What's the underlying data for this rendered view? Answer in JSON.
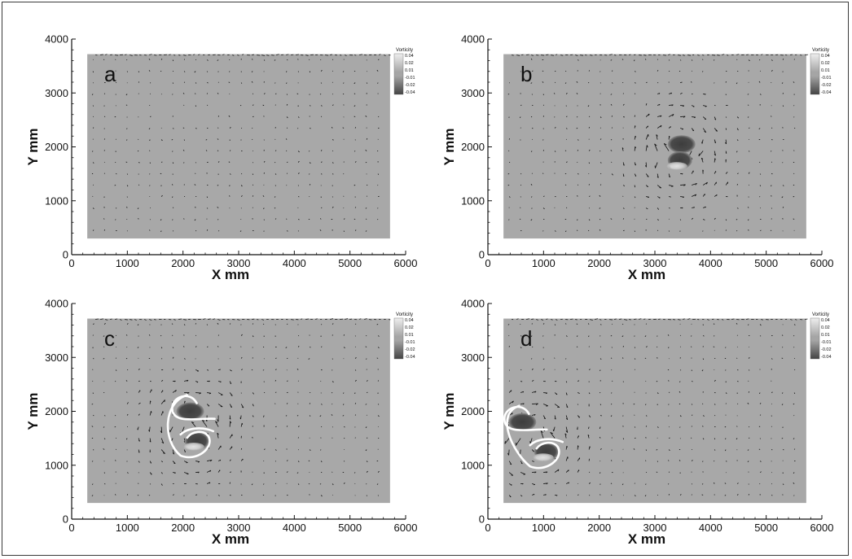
{
  "chart_data": [
    {
      "type": "vector-field",
      "panel_label": "a",
      "xlabel": "X mm",
      "ylabel": "Y mm",
      "xlim": [
        0,
        6000
      ],
      "ylim": [
        0,
        4000
      ],
      "xticks": [
        0,
        1000,
        2000,
        3000,
        4000,
        5000,
        6000
      ],
      "yticks": [
        0,
        1000,
        2000,
        3000,
        4000
      ],
      "field_extent": {
        "x": [
          280,
          5720
        ],
        "y": [
          300,
          3720
        ]
      },
      "colorbar": {
        "title": "Vorticity",
        "ticks": [
          0.04,
          0.02,
          0.01,
          -0.01,
          -0.02,
          -0.04
        ]
      },
      "vortex_pair": null
    },
    {
      "type": "vector-field",
      "panel_label": "b",
      "xlabel": "X mm",
      "ylabel": "Y mm",
      "xlim": [
        0,
        6000
      ],
      "ylim": [
        0,
        4000
      ],
      "xticks": [
        0,
        1000,
        2000,
        3000,
        4000,
        5000,
        6000
      ],
      "yticks": [
        0,
        1000,
        2000,
        3000,
        4000
      ],
      "field_extent": {
        "x": [
          280,
          5720
        ],
        "y": [
          300,
          3720
        ]
      },
      "colorbar": {
        "title": "Vorticity",
        "ticks": [
          0.04,
          0.02,
          0.01,
          -0.01,
          -0.02,
          -0.04
        ]
      },
      "vortex_pair": {
        "upper": {
          "x": 3480,
          "y": 2050
        },
        "lower": {
          "x": 3450,
          "y": 1750
        }
      },
      "streamlines": false
    },
    {
      "type": "vector-field",
      "panel_label": "c",
      "xlabel": "X mm",
      "ylabel": "Y mm",
      "xlim": [
        0,
        6000
      ],
      "ylim": [
        0,
        4000
      ],
      "xticks": [
        0,
        1000,
        2000,
        3000,
        4000,
        5000,
        6000
      ],
      "yticks": [
        0,
        1000,
        2000,
        3000,
        4000
      ],
      "field_extent": {
        "x": [
          280,
          5720
        ],
        "y": [
          300,
          3720
        ]
      },
      "colorbar": {
        "title": "Vorticity",
        "ticks": [
          0.04,
          0.02,
          0.01,
          -0.01,
          -0.02,
          -0.04
        ]
      },
      "vortex_pair": {
        "upper": {
          "x": 2130,
          "y": 2000
        },
        "lower": {
          "x": 2250,
          "y": 1450
        }
      },
      "streamlines": true
    },
    {
      "type": "vector-field",
      "panel_label": "d",
      "xlabel": "X mm",
      "ylabel": "Y mm",
      "xlim": [
        0,
        6000
      ],
      "ylim": [
        0,
        4000
      ],
      "xticks": [
        0,
        1000,
        2000,
        3000,
        4000,
        5000,
        6000
      ],
      "yticks": [
        0,
        1000,
        2000,
        3000,
        4000
      ],
      "field_extent": {
        "x": [
          280,
          5720
        ],
        "y": [
          300,
          3720
        ]
      },
      "colorbar": {
        "title": "Vorticity",
        "ticks": [
          0.04,
          0.02,
          0.01,
          -0.01,
          -0.02,
          -0.04
        ]
      },
      "vortex_pair": {
        "upper": {
          "x": 620,
          "y": 1800
        },
        "lower": {
          "x": 1050,
          "y": 1250
        }
      },
      "streamlines": true
    }
  ]
}
